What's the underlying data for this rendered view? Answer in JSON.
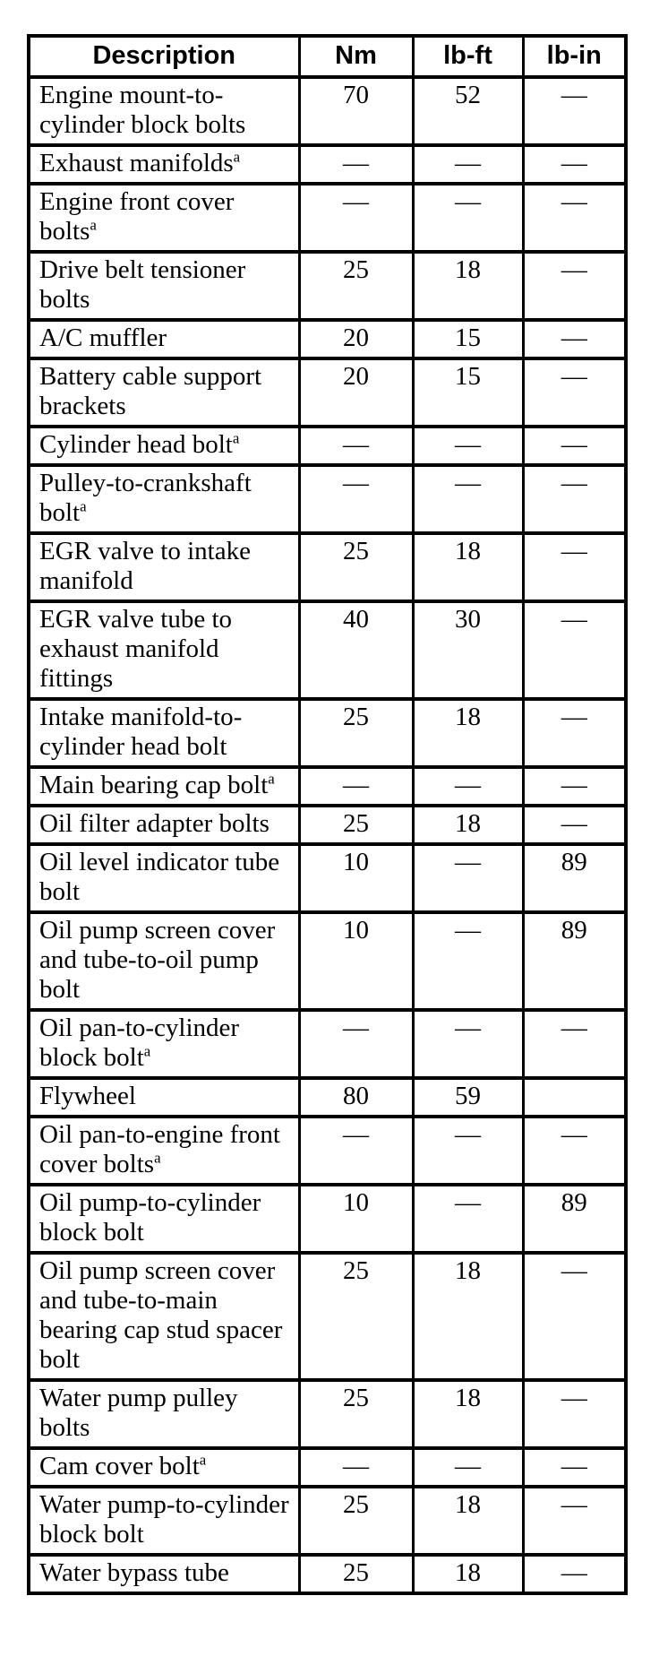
{
  "colors": {
    "background": "#ffffff",
    "text": "#000000",
    "border": "#000000"
  },
  "table": {
    "columns": [
      {
        "label": "Description"
      },
      {
        "label": "Nm"
      },
      {
        "label": "lb-ft"
      },
      {
        "label": "lb-in"
      }
    ],
    "footnote_marker": "a",
    "empty_value": "—",
    "rows": [
      {
        "description": "Engine mount-to-cylinder block bolts",
        "sup": "",
        "nm": "70",
        "lbft": "52",
        "lbin": "—"
      },
      {
        "description": "Exhaust manifolds",
        "sup": "a",
        "nm": "—",
        "lbft": "—",
        "lbin": "—"
      },
      {
        "description": "Engine front cover bolts",
        "sup": "a",
        "nm": "—",
        "lbft": "—",
        "lbin": "—"
      },
      {
        "description": "Drive belt tensioner bolts",
        "sup": "",
        "nm": "25",
        "lbft": "18",
        "lbin": "—"
      },
      {
        "description": "A/C muffler",
        "sup": "",
        "nm": "20",
        "lbft": "15",
        "lbin": "—"
      },
      {
        "description": "Battery cable support brackets",
        "sup": "",
        "nm": "20",
        "lbft": "15",
        "lbin": "—"
      },
      {
        "description": "Cylinder head bolt",
        "sup": "a",
        "nm": "—",
        "lbft": "—",
        "lbin": "—"
      },
      {
        "description": "Pulley-to-crankshaft bolt",
        "sup": "a",
        "nm": "—",
        "lbft": "—",
        "lbin": "—"
      },
      {
        "description": "EGR valve to intake manifold",
        "sup": "",
        "nm": "25",
        "lbft": "18",
        "lbin": "—"
      },
      {
        "description": "EGR valve tube to exhaust manifold fittings",
        "sup": "",
        "nm": "40",
        "lbft": "30",
        "lbin": "—"
      },
      {
        "description": "Intake manifold-to-cylinder head bolt",
        "sup": "",
        "nm": "25",
        "lbft": "18",
        "lbin": "—"
      },
      {
        "description": "Main bearing cap bolt",
        "sup": "a",
        "nm": "—",
        "lbft": "—",
        "lbin": "—"
      },
      {
        "description": "Oil filter adapter bolts",
        "sup": "",
        "nm": "25",
        "lbft": "18",
        "lbin": "—"
      },
      {
        "description": "Oil level indicator tube bolt",
        "sup": "",
        "nm": "10",
        "lbft": "—",
        "lbin": "89"
      },
      {
        "description": "Oil pump screen cover and tube-to-oil pump bolt",
        "sup": "",
        "nm": "10",
        "lbft": "—",
        "lbin": "89"
      },
      {
        "description": "Oil pan-to-cylinder block bolt",
        "sup": "a",
        "nm": "—",
        "lbft": "—",
        "lbin": "—"
      },
      {
        "description": "Flywheel",
        "sup": "",
        "nm": "80",
        "lbft": "59",
        "lbin": ""
      },
      {
        "description": "Oil pan-to-engine front cover bolts",
        "sup": "a",
        "nm": "—",
        "lbft": "—",
        "lbin": "—"
      },
      {
        "description": "Oil pump-to-cylinder block bolt",
        "sup": "",
        "nm": "10",
        "lbft": "—",
        "lbin": "89"
      },
      {
        "description": "Oil pump screen cover and tube-to-main bearing cap stud spacer bolt",
        "sup": "",
        "nm": "25",
        "lbft": "18",
        "lbin": "—"
      },
      {
        "description": "Water pump pulley bolts",
        "sup": "",
        "nm": "25",
        "lbft": "18",
        "lbin": "—"
      },
      {
        "description": "Cam cover bolt",
        "sup": "a",
        "nm": "—",
        "lbft": "—",
        "lbin": "—"
      },
      {
        "description": "Water pump-to-cylinder block bolt",
        "sup": "",
        "nm": "25",
        "lbft": "18",
        "lbin": "—"
      },
      {
        "description": "Water bypass tube",
        "sup": "",
        "nm": "25",
        "lbft": "18",
        "lbin": "—"
      }
    ]
  }
}
